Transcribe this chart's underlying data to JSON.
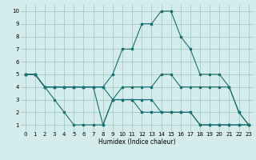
{
  "xlabel": "Humidex (Indice chaleur)",
  "bg_color": "#d4ecec",
  "grid_color": "#aacece",
  "line_color": "#1a7070",
  "xlim": [
    -0.5,
    23.5
  ],
  "ylim": [
    0.5,
    10.5
  ],
  "xticks": [
    0,
    1,
    2,
    3,
    4,
    5,
    6,
    7,
    8,
    9,
    10,
    11,
    12,
    13,
    14,
    15,
    16,
    17,
    18,
    19,
    20,
    21,
    22,
    23
  ],
  "yticks": [
    1,
    2,
    3,
    4,
    5,
    6,
    7,
    8,
    9,
    10
  ],
  "lines": [
    {
      "x": [
        0,
        1,
        2,
        3,
        4,
        5,
        6,
        7,
        8,
        9,
        10,
        11,
        12,
        13,
        14,
        15,
        16,
        17,
        18,
        19,
        20,
        21,
        22,
        23
      ],
      "y": [
        5,
        5,
        4,
        4,
        4,
        4,
        4,
        4,
        4,
        5,
        7,
        7,
        9,
        9,
        10,
        10,
        8,
        7,
        5,
        5,
        5,
        4,
        2,
        1
      ]
    },
    {
      "x": [
        0,
        1,
        2,
        3,
        4,
        5,
        6,
        7,
        8,
        9,
        10,
        11,
        12,
        13,
        14,
        15,
        16,
        17,
        18,
        19,
        20,
        21,
        22,
        23
      ],
      "y": [
        5,
        5,
        4,
        4,
        4,
        4,
        4,
        4,
        4,
        3,
        4,
        4,
        4,
        4,
        5,
        5,
        4,
        4,
        4,
        4,
        4,
        4,
        2,
        1
      ]
    },
    {
      "x": [
        0,
        1,
        2,
        3,
        4,
        5,
        6,
        7,
        8,
        9,
        10,
        11,
        12,
        13,
        14,
        15,
        16,
        17,
        18,
        19,
        20,
        21,
        22,
        23
      ],
      "y": [
        5,
        5,
        4,
        3,
        2,
        1,
        1,
        1,
        1,
        3,
        3,
        3,
        2,
        2,
        2,
        2,
        2,
        2,
        1,
        1,
        1,
        1,
        1,
        1
      ]
    },
    {
      "x": [
        0,
        1,
        2,
        3,
        4,
        5,
        6,
        7,
        8,
        9,
        10,
        11,
        12,
        13,
        14,
        15,
        16,
        17,
        18,
        19,
        20,
        21,
        22,
        23
      ],
      "y": [
        5,
        5,
        4,
        4,
        4,
        4,
        4,
        4,
        1,
        3,
        3,
        3,
        3,
        3,
        2,
        2,
        2,
        2,
        1,
        1,
        1,
        1,
        1,
        1
      ]
    }
  ]
}
